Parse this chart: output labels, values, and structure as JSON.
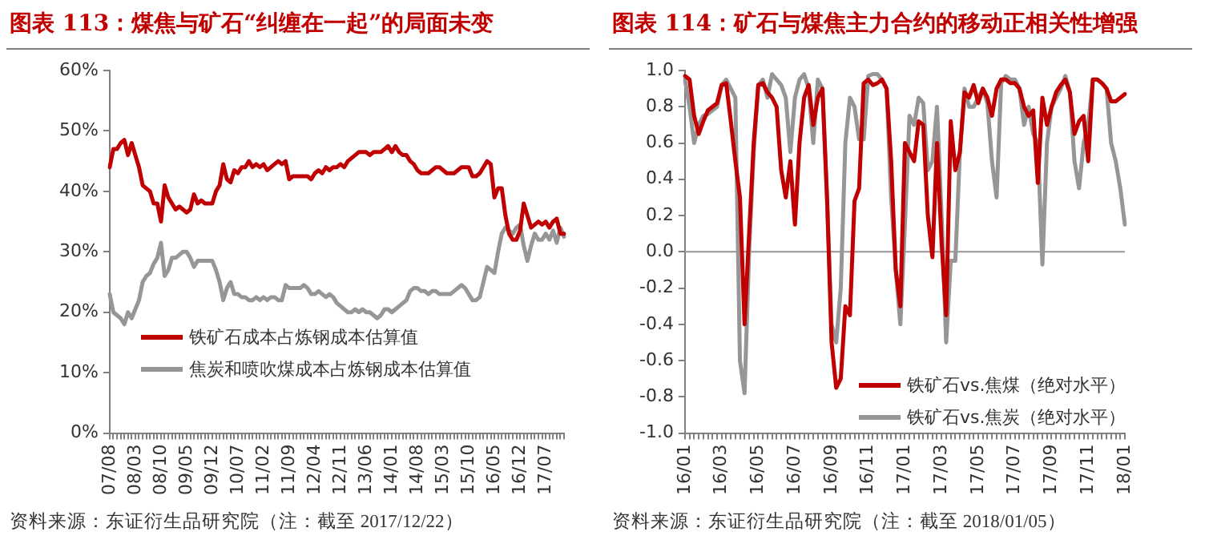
{
  "chart_data": [
    {
      "type": "line",
      "title": "图表 113：煤焦与矿石“纠缠在一起”的局面未变",
      "annotations": [
        "资料来源：东证衍生品研究院（注：截至 2017/12/22）"
      ],
      "categories": [
        "07/08",
        null,
        null,
        null,
        null,
        null,
        null,
        "08/03",
        null,
        null,
        null,
        null,
        null,
        null,
        "08/10",
        null,
        null,
        null,
        null,
        null,
        null,
        "09/05",
        null,
        null,
        null,
        null,
        null,
        null,
        "09/12",
        null,
        null,
        null,
        null,
        null,
        null,
        "10/07",
        null,
        null,
        null,
        null,
        null,
        null,
        "11/02",
        null,
        null,
        null,
        null,
        null,
        null,
        "11/09",
        null,
        null,
        null,
        null,
        null,
        null,
        "12/04",
        null,
        null,
        null,
        null,
        null,
        null,
        "12/11",
        null,
        null,
        null,
        null,
        null,
        null,
        "13/06",
        null,
        null,
        null,
        null,
        null,
        null,
        "14/01",
        null,
        null,
        null,
        null,
        null,
        null,
        "14/08",
        null,
        null,
        null,
        null,
        null,
        null,
        "15/03",
        null,
        null,
        null,
        null,
        null,
        null,
        "15/10",
        null,
        null,
        null,
        null,
        null,
        null,
        "16/05",
        null,
        null,
        null,
        null,
        null,
        null,
        "16/12",
        null,
        null,
        null,
        null,
        null,
        null,
        "17/07",
        null,
        null,
        null,
        null,
        null
      ],
      "series": [
        {
          "name": "铁矿石成本占炼钢成本估算值",
          "color": "#c00000",
          "values": [
            44,
            47,
            47,
            48,
            48.5,
            46,
            48,
            46,
            44,
            41,
            40.5,
            40,
            38,
            38,
            35,
            41,
            39,
            38,
            37,
            37.5,
            37,
            36.5,
            37,
            39.5,
            38,
            38.5,
            38,
            38,
            38,
            40,
            41,
            44.5,
            42,
            41.5,
            43.5,
            43,
            44,
            44,
            45,
            44,
            44.5,
            44,
            44.5,
            43.5,
            44,
            44.5,
            45,
            44.5,
            45,
            42,
            42.5,
            42.5,
            42.5,
            42.5,
            42.5,
            42,
            43,
            43.5,
            43,
            44,
            43.5,
            44,
            44,
            44.5,
            44,
            45,
            45.5,
            46,
            46.5,
            46.5,
            46.5,
            46,
            46.5,
            46.5,
            46.5,
            47,
            47.5,
            46.5,
            47.5,
            46.5,
            46,
            46,
            45,
            44.5,
            43.5,
            43,
            43,
            43,
            43.5,
            44,
            44,
            43.5,
            43,
            43,
            43,
            43.5,
            44,
            44,
            44,
            42.5,
            42.5,
            43,
            44,
            45,
            44.5,
            39,
            40.5,
            40.5,
            36,
            33,
            32,
            32,
            33.5,
            38,
            36,
            34,
            34.5,
            35,
            34.5,
            35,
            34,
            35,
            35.5,
            33,
            33
          ]
        },
        {
          "name": "焦炭和喷吹煤成本占炼钢成本估算值",
          "color": "#969696",
          "values": [
            23,
            20,
            19.5,
            19,
            18,
            20,
            19,
            20.5,
            22,
            25,
            26,
            26.5,
            28,
            29,
            31.5,
            26,
            27,
            29,
            29,
            29.5,
            30,
            30,
            29,
            27.5,
            28.5,
            28.5,
            28.5,
            28.5,
            28.5,
            27,
            25,
            22,
            24,
            25,
            23,
            23,
            22.5,
            22.5,
            22,
            22,
            22.5,
            22,
            22.5,
            22,
            22.5,
            22.5,
            22,
            22,
            24.5,
            24,
            24,
            24,
            24,
            24.5,
            24,
            23,
            23,
            23.5,
            23,
            22.5,
            23,
            22.5,
            21.5,
            21,
            20.5,
            20,
            20,
            20.5,
            20,
            20.5,
            20,
            20,
            19.5,
            19,
            19.5,
            20.5,
            20.5,
            20,
            20.5,
            21,
            21.5,
            22,
            23.5,
            24,
            24,
            23.5,
            23.5,
            23,
            23.5,
            23.5,
            23,
            23,
            23,
            23,
            23.5,
            24,
            24.5,
            24,
            23,
            22,
            22,
            22.5,
            25,
            27.5,
            27,
            26.5,
            30,
            33,
            34,
            33.5,
            33,
            34,
            34.5,
            31,
            28.5,
            31,
            33,
            32,
            32,
            33,
            32,
            33.5,
            31.5,
            34,
            32.5
          ]
        }
      ],
      "ylim": [
        0,
        60
      ],
      "yticks": [
        {
          "value": 0,
          "label": "0%"
        },
        {
          "value": 10,
          "label": "10%"
        },
        {
          "value": 20,
          "label": "20%"
        },
        {
          "value": 30,
          "label": "30%"
        },
        {
          "value": 40,
          "label": "40%"
        },
        {
          "value": 50,
          "label": "50%"
        },
        {
          "value": 60,
          "label": "60%"
        }
      ],
      "grid": false,
      "legend": "bottom",
      "marker": "none",
      "line_style": "solid"
    },
    {
      "type": "line",
      "title": "图表 114：矿石与煤焦主力合约的移动正相关性增强",
      "annotations": [
        "资料来源：东证衍生品研究院（注：截至 2018/01/05）"
      ],
      "categories": [
        "16/01",
        null,
        null,
        null,
        null,
        null,
        null,
        null,
        "16/03",
        null,
        null,
        null,
        null,
        null,
        null,
        null,
        "16/05",
        null,
        null,
        null,
        null,
        null,
        null,
        null,
        "16/07",
        null,
        null,
        null,
        null,
        null,
        null,
        null,
        "16/09",
        null,
        null,
        null,
        null,
        null,
        null,
        null,
        "16/11",
        null,
        null,
        null,
        null,
        null,
        null,
        null,
        "17/01",
        null,
        null,
        null,
        null,
        null,
        null,
        null,
        "17/03",
        null,
        null,
        null,
        null,
        null,
        null,
        null,
        "17/05",
        null,
        null,
        null,
        null,
        null,
        null,
        null,
        "17/07",
        null,
        null,
        null,
        null,
        null,
        null,
        null,
        "17/09",
        null,
        null,
        null,
        null,
        null,
        null,
        null,
        "17/11",
        null,
        null,
        null,
        null,
        null,
        null,
        null,
        "18/01"
      ],
      "series": [
        {
          "name": "铁矿石vs.焦煤（绝对水平）",
          "color": "#c00000",
          "values": [
            0.97,
            0.95,
            0.75,
            0.65,
            0.72,
            0.78,
            0.8,
            0.82,
            0.92,
            0.93,
            0.72,
            0.5,
            0.3,
            -0.4,
            0.1,
            0.6,
            0.92,
            0.93,
            0.88,
            0.85,
            0.8,
            0.45,
            0.3,
            0.5,
            0.15,
            0.6,
            0.85,
            0.92,
            0.7,
            0.85,
            0.9,
            0.3,
            -0.5,
            -0.75,
            -0.7,
            -0.3,
            -0.35,
            0.28,
            0.35,
            0.93,
            0.95,
            0.92,
            0.93,
            0.95,
            0.9,
            0.5,
            -0.1,
            -0.3,
            0.6,
            0.55,
            0.5,
            0.72,
            0.7,
            0.2,
            -0.03,
            0.6,
            0.05,
            -0.35,
            0.72,
            0.45,
            0.55,
            0.88,
            0.85,
            0.92,
            0.82,
            0.9,
            0.85,
            0.75,
            0.9,
            0.95,
            0.95,
            0.93,
            0.93,
            0.9,
            0.8,
            0.75,
            0.78,
            0.38,
            0.85,
            0.7,
            0.8,
            0.88,
            0.92,
            0.95,
            0.88,
            0.65,
            0.72,
            0.75,
            0.5,
            0.95,
            0.95,
            0.93,
            0.9,
            0.83,
            0.83,
            0.85,
            0.87
          ]
        },
        {
          "name": "铁矿石vs.焦炭（绝对水平）",
          "color": "#969696",
          "values": [
            0.95,
            0.8,
            0.6,
            0.7,
            0.75,
            0.76,
            0.78,
            0.8,
            0.92,
            0.95,
            0.9,
            0.85,
            -0.6,
            -0.78,
            0,
            0.55,
            0.92,
            0.95,
            0.85,
            0.98,
            0.95,
            0.92,
            0.85,
            0.55,
            0.85,
            0.95,
            0.98,
            0.9,
            0.6,
            0.95,
            0.9,
            0.3,
            -0.4,
            -0.5,
            -0.2,
            0.6,
            0.85,
            0.8,
            0.62,
            0.62,
            0.97,
            0.98,
            0.98,
            0.95,
            0.9,
            0.3,
            -0.1,
            -0.4,
            0.15,
            0.75,
            0.7,
            0.85,
            0.82,
            0.45,
            0.5,
            0.8,
            0.2,
            -0.5,
            -0.05,
            -0.05,
            0.55,
            0.9,
            0.8,
            0.8,
            0.85,
            0.9,
            0.82,
            0.5,
            0.3,
            0.93,
            0.97,
            0.95,
            0.95,
            0.9,
            0.7,
            0.8,
            0.65,
            0.6,
            -0.07,
            0.6,
            0.8,
            0.85,
            0.9,
            0.97,
            0.88,
            0.5,
            0.35,
            0.6,
            0.7,
            0.95,
            0.95,
            0.93,
            0.9,
            0.6,
            0.5,
            0.35,
            0.15
          ]
        }
      ],
      "ylim": [
        -1,
        1
      ],
      "yticks": [
        {
          "value": -1,
          "label": "-1.0"
        },
        {
          "value": -0.8,
          "label": "-0.8"
        },
        {
          "value": -0.6,
          "label": "-0.6"
        },
        {
          "value": -0.4,
          "label": "-0.4"
        },
        {
          "value": -0.2,
          "label": "-0.2"
        },
        {
          "value": 0,
          "label": "0.0"
        },
        {
          "value": 0.2,
          "label": "0.2"
        },
        {
          "value": 0.4,
          "label": "0.4"
        },
        {
          "value": 0.6,
          "label": "0.6"
        },
        {
          "value": 0.8,
          "label": "0.8"
        },
        {
          "value": 1,
          "label": "1.0"
        }
      ],
      "ref_lines": [
        {
          "axis": "y",
          "value": 0,
          "color": "#969696"
        }
      ],
      "grid": false,
      "legend": "bottom right",
      "marker": "none",
      "line_style": "solid"
    }
  ]
}
